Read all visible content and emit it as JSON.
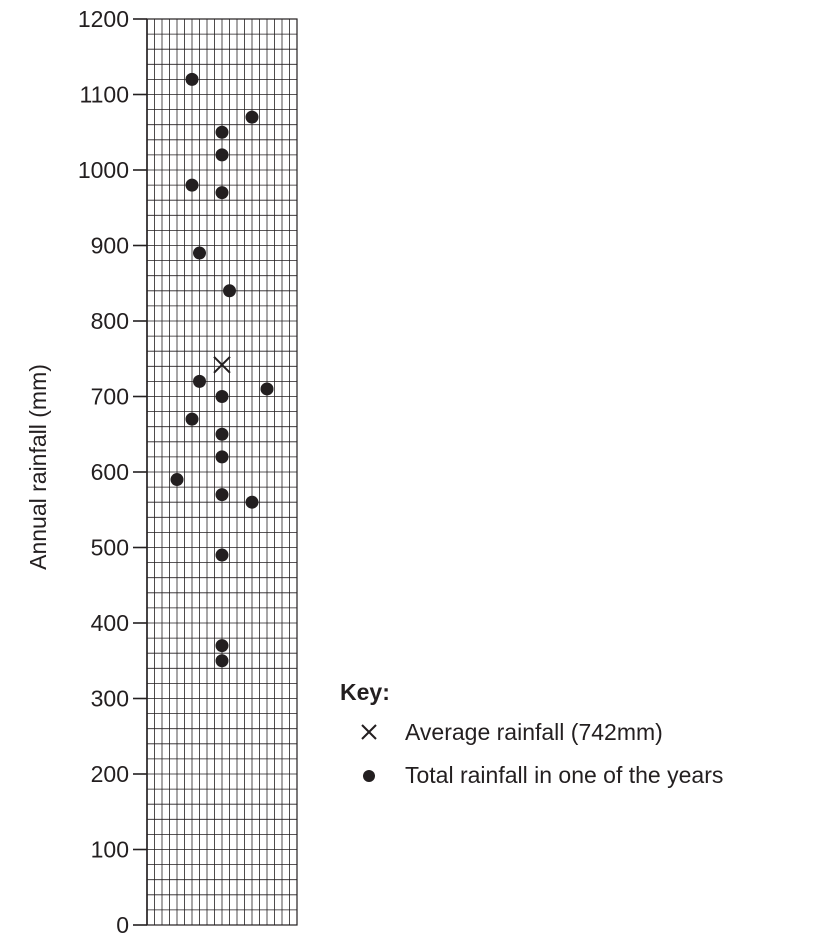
{
  "chart_data": {
    "type": "scatter",
    "ylabel": "Annual rainfall (mm)",
    "ylim": [
      0,
      1200
    ],
    "yticks": [
      "0",
      "100",
      "200",
      "300",
      "400",
      "500",
      "600",
      "700",
      "800",
      "900",
      "1000",
      "1100",
      "1200"
    ],
    "grid": true,
    "legend_position": "right",
    "key": {
      "title": "Key:",
      "items": [
        {
          "symbol": "cross-icon",
          "label": "Average rainfall (742mm)"
        },
        {
          "symbol": "dot-icon",
          "label": "Total rainfall in one of the years"
        }
      ]
    },
    "average": {
      "x": 10,
      "y": 742
    },
    "series": [
      {
        "points": [
          {
            "x": 6,
            "y": 1120
          },
          {
            "x": 14,
            "y": 1070
          },
          {
            "x": 10,
            "y": 1050
          },
          {
            "x": 10,
            "y": 1020
          },
          {
            "x": 6,
            "y": 980
          },
          {
            "x": 10,
            "y": 970
          },
          {
            "x": 7,
            "y": 890
          },
          {
            "x": 11,
            "y": 840
          },
          {
            "x": 7,
            "y": 720
          },
          {
            "x": 16,
            "y": 710
          },
          {
            "x": 10,
            "y": 700
          },
          {
            "x": 6,
            "y": 670
          },
          {
            "x": 10,
            "y": 650
          },
          {
            "x": 10,
            "y": 620
          },
          {
            "x": 4,
            "y": 590
          },
          {
            "x": 10,
            "y": 570
          },
          {
            "x": 14,
            "y": 560
          },
          {
            "x": 10,
            "y": 490
          },
          {
            "x": 10,
            "y": 370
          },
          {
            "x": 10,
            "y": 350
          }
        ]
      }
    ],
    "colors": {
      "ink": "#231f20",
      "grid": "#231f20",
      "background": "#ffffff"
    }
  }
}
